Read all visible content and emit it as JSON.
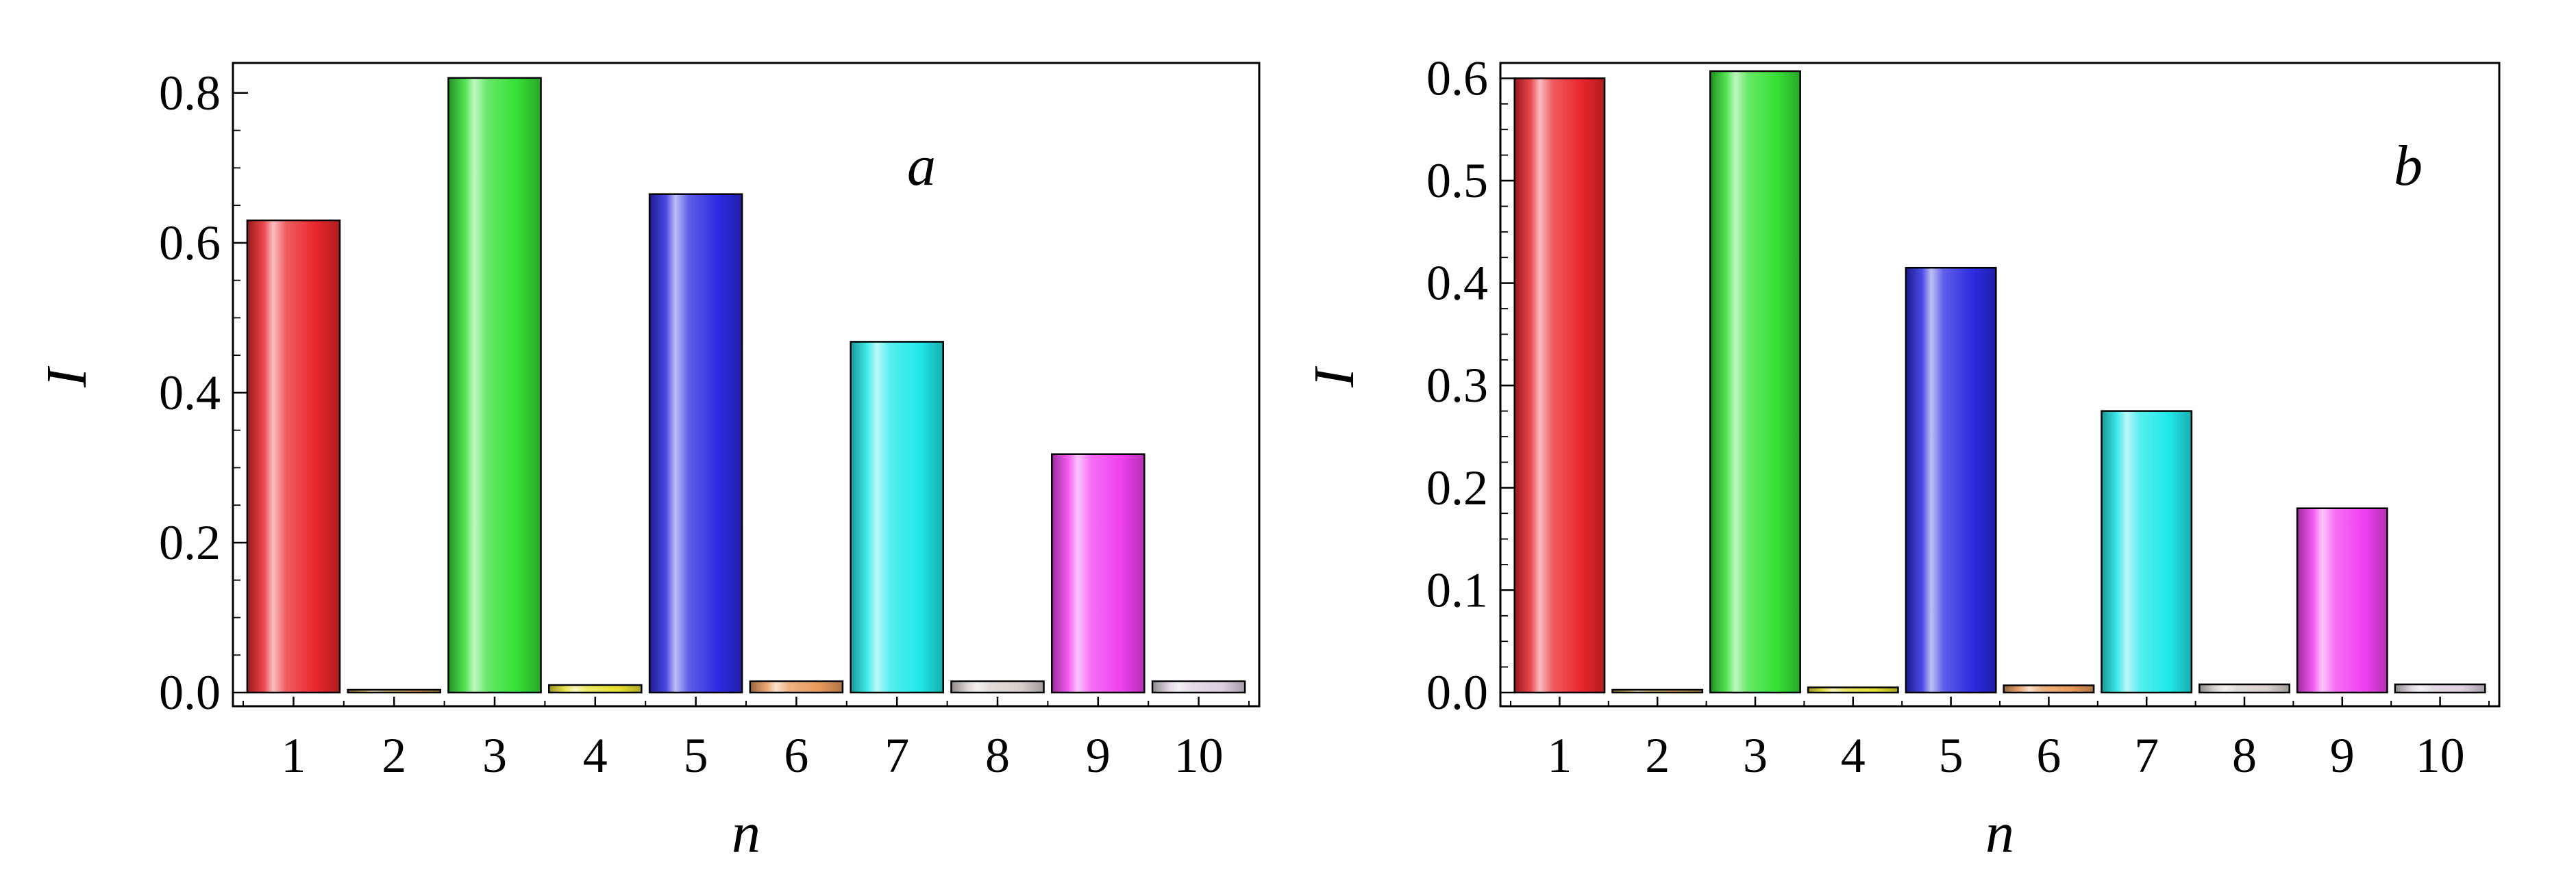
{
  "chart_data": [
    {
      "type": "bar",
      "panel_label": "a",
      "xlabel": "n",
      "ylabel": "I",
      "categories": [
        "1",
        "2",
        "3",
        "4",
        "5",
        "6",
        "7",
        "8",
        "9",
        "10"
      ],
      "values": [
        0.63,
        0.002,
        0.82,
        0.01,
        0.665,
        0.015,
        0.468,
        0.015,
        0.318,
        0.015
      ],
      "colors": [
        "#e8262c",
        "#d9a860",
        "#34e034",
        "#e8e030",
        "#2a2ae0",
        "#e89a5a",
        "#20e8e8",
        "#d8d0cc",
        "#f040f0",
        "#dcd0de"
      ],
      "ylim": [
        0,
        0.84
      ],
      "yticks": [
        0.0,
        0.2,
        0.4,
        0.6,
        0.8
      ],
      "ytick_labels": [
        "0.0",
        "0.2",
        "0.4",
        "0.6",
        "0.8"
      ],
      "grid": false,
      "legend": "none"
    },
    {
      "type": "bar",
      "panel_label": "b",
      "xlabel": "n",
      "ylabel": "I",
      "categories": [
        "1",
        "2",
        "3",
        "4",
        "5",
        "6",
        "7",
        "8",
        "9",
        "10"
      ],
      "values": [
        0.6,
        0.001,
        0.607,
        0.005,
        0.415,
        0.007,
        0.275,
        0.008,
        0.18,
        0.008
      ],
      "colors": [
        "#e8262c",
        "#d9a860",
        "#34e034",
        "#e8e030",
        "#2a2ae0",
        "#e89a5a",
        "#20e8e8",
        "#d8d0cc",
        "#f040f0",
        "#dcd0de"
      ],
      "ylim": [
        0,
        0.615
      ],
      "yticks": [
        0.0,
        0.1,
        0.2,
        0.3,
        0.4,
        0.5,
        0.6
      ],
      "ytick_labels": [
        "0.0",
        "0.1",
        "0.2",
        "0.3",
        "0.4",
        "0.5",
        "0.6"
      ],
      "grid": false,
      "legend": "none"
    }
  ]
}
